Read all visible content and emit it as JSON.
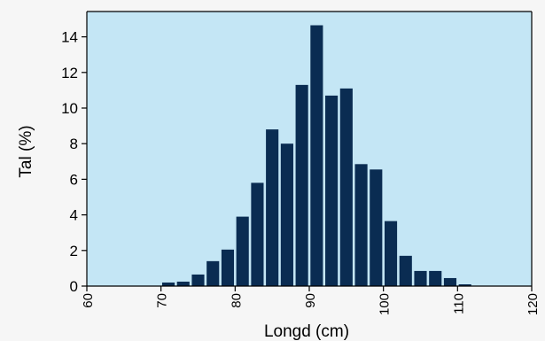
{
  "colors": {
    "page_background": "#f6f6f6",
    "plot_background": "#c4e6f5",
    "bar_fill": "#0a2c52",
    "axis": "#000000"
  },
  "chart_data": {
    "type": "bar",
    "title": "",
    "xlabel": "Longd (cm)",
    "ylabel": "Tal (%)",
    "bin_width": 2,
    "bin_starts": [
      60,
      62,
      64,
      66,
      68,
      70,
      72,
      74,
      76,
      78,
      80,
      82,
      84,
      86,
      88,
      90,
      92,
      94,
      96,
      98,
      100,
      102,
      104,
      106,
      108,
      110,
      112,
      114,
      116,
      118
    ],
    "values": [
      0,
      0,
      0,
      0,
      0,
      0.2,
      0.25,
      0.65,
      1.4,
      2.05,
      3.9,
      5.8,
      8.8,
      8.0,
      11.3,
      14.65,
      10.7,
      11.1,
      6.85,
      6.55,
      3.65,
      1.7,
      0.85,
      0.85,
      0.45,
      0.1,
      0,
      0,
      0,
      0
    ],
    "xlim": [
      60,
      120
    ],
    "ylim": [
      0,
      15
    ],
    "x_ticks": [
      60,
      70,
      80,
      90,
      100,
      110,
      120
    ],
    "x_tick_labels": [
      "60",
      "70",
      "80",
      "90",
      "100",
      "110",
      "120"
    ],
    "x_tick_rotation": "vertical",
    "y_ticks": [
      0,
      2,
      4,
      6,
      8,
      10,
      12,
      14
    ],
    "y_tick_labels": [
      "0",
      "2",
      "4",
      "6",
      "8",
      "10",
      "12",
      "14"
    ],
    "grid": false,
    "legend": "none"
  }
}
